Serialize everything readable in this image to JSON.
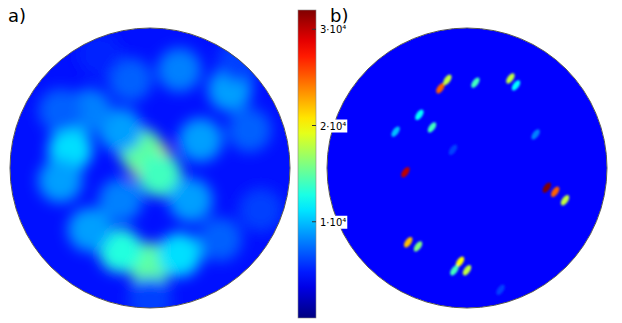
{
  "chart_data": {
    "type": "heatmap",
    "panels": [
      {
        "label": "a)",
        "marker": "blob",
        "background": 4500,
        "spots": {
          "x": [
            -0.01,
            -0.07,
            0.07,
            -0.21,
            -0.43,
            -0.57,
            -0.64,
            -0.14,
            0.21,
            0.57,
            0.71,
            0.64,
            0.36,
            0.29,
            -0.21,
            0.0,
            -0.21,
            0.21,
            -0.43,
            0.5,
            0.79,
            -0.64,
            -0.36,
            0.0
          ],
          "y": [
            0.06,
            0.13,
            -0.05,
            0.27,
            0.41,
            0.13,
            -0.09,
            0.63,
            0.7,
            0.56,
            0.27,
            0.77,
            0.2,
            -0.23,
            -0.23,
            -0.69,
            -0.59,
            -0.62,
            -0.44,
            -0.51,
            -0.3,
            0.41,
            0.81,
            -0.94
          ],
          "values": [
            22000,
            15000,
            14000,
            9000,
            8000,
            11000,
            9000,
            7000,
            8000,
            9000,
            7000,
            6000,
            9000,
            9000,
            8000,
            15000,
            13000,
            11000,
            9000,
            7000,
            6000,
            7000,
            5000,
            6000
          ]
        }
      },
      {
        "label": "b)",
        "marker": "dot",
        "background": 4000,
        "spots": {
          "x": [
            -0.19,
            -0.14,
            0.06,
            0.31,
            0.35,
            -0.34,
            -0.25,
            -0.44,
            0.57,
            0.63,
            0.7,
            -0.42,
            -0.35,
            -0.05,
            0.0,
            -0.09,
            0.49,
            -0.1,
            0.24,
            -0.51
          ],
          "y": [
            0.57,
            0.63,
            0.61,
            0.64,
            0.59,
            0.38,
            0.29,
            -0.03,
            -0.14,
            -0.17,
            -0.23,
            -0.53,
            -0.56,
            -0.67,
            -0.73,
            -0.73,
            0.24,
            0.13,
            -0.87,
            0.26
          ],
          "values": [
            25000,
            18000,
            14000,
            18000,
            12000,
            12000,
            14000,
            30000,
            32000,
            25000,
            18000,
            22000,
            16000,
            20000,
            18000,
            14000,
            8000,
            6000,
            6000,
            10000
          ]
        }
      }
    ],
    "colorbar": {
      "range": [
        0,
        32000
      ],
      "ticks": [
        {
          "value": 10000,
          "label": "1·10⁴"
        },
        {
          "value": 20000,
          "label": "2·10⁴"
        },
        {
          "value": 30000,
          "label": "3·10⁴"
        }
      ]
    }
  }
}
